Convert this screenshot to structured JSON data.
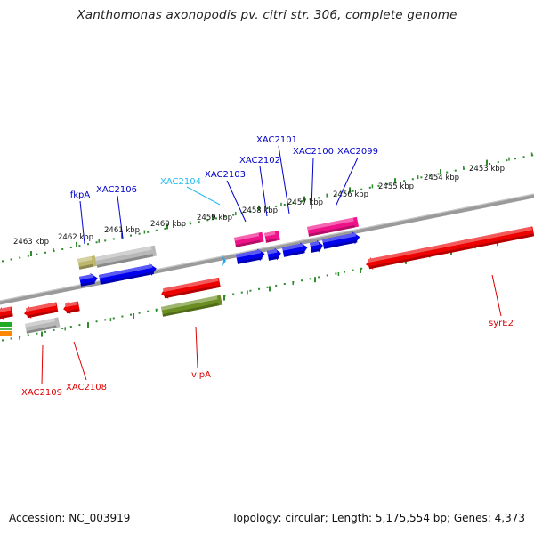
{
  "title": "Xanthomonas axonopodis pv. citri str. 306, complete genome",
  "footer": {
    "accession": "Accession: NC_003919",
    "summary": "Topology: circular; Length: 5,175,554 bp; Genes: 4,373"
  },
  "colors": {
    "backbone": "#8a8a8a",
    "tick": "#2e8b2e",
    "blue": "#0000ee",
    "red": "#ee0000",
    "magenta": "#ee1188",
    "gray": "#b8b8b8",
    "olive": "#6b8e23",
    "khaki": "#bdb76b",
    "cyan": "#22aaee",
    "green": "#22aa22",
    "orange": "#ff8800",
    "label_blue": "#0000cc",
    "label_red": "#dd0000",
    "label_cyan": "#22bbee"
  },
  "scale_labels": [
    "2463 kbp",
    "2462 kbp",
    "2461 kbp",
    "2460 kbp",
    "2459 kbp",
    "2458 kbp",
    "2457 kbp",
    "2456 kbp",
    "2455 kbp",
    "2454 kbp",
    "2453 kbp"
  ],
  "gene_labels": [
    {
      "text": "fkpA",
      "color": "label_blue"
    },
    {
      "text": "XAC2106",
      "color": "label_blue"
    },
    {
      "text": "XAC2104",
      "color": "label_cyan"
    },
    {
      "text": "XAC2103",
      "color": "label_blue"
    },
    {
      "text": "XAC2102",
      "color": "label_blue"
    },
    {
      "text": "XAC2101",
      "color": "label_blue"
    },
    {
      "text": "XAC2100",
      "color": "label_blue"
    },
    {
      "text": "XAC2099",
      "color": "label_blue"
    },
    {
      "text": "XAC2109",
      "color": "label_red"
    },
    {
      "text": "XAC2108",
      "color": "label_red"
    },
    {
      "text": "vipA",
      "color": "label_red"
    },
    {
      "text": "syrE2",
      "color": "label_red"
    }
  ]
}
